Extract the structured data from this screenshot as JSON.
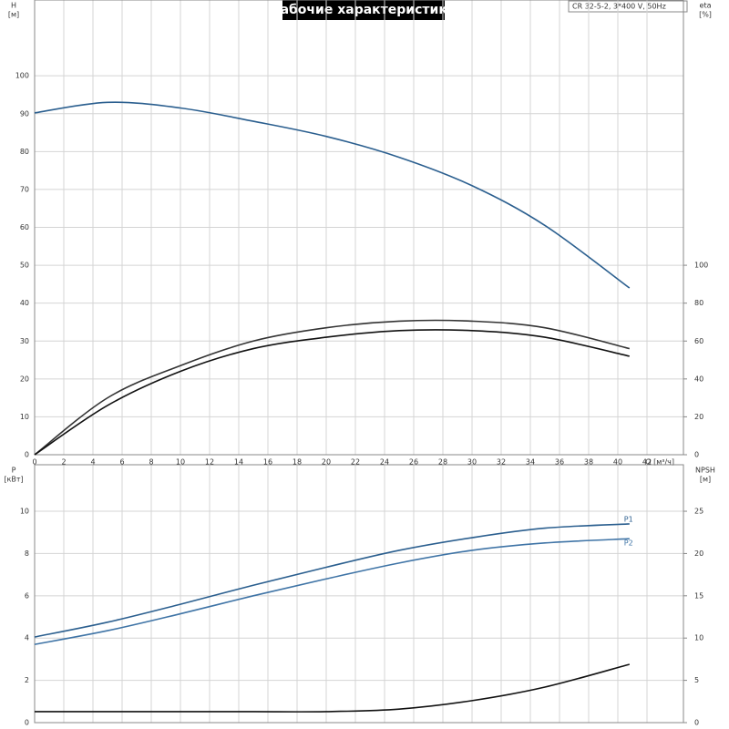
{
  "chart_data": [
    {
      "type": "line",
      "title": "Рабочие характеристики",
      "annotation": "CR 32-5-2, 3*400 V, 50Hz",
      "ylabel": "H",
      "yunit": "[м]",
      "y2label": "eta",
      "y2unit": "[%]",
      "xlabel": "Q [м³/ч]",
      "x": [
        0,
        5,
        10,
        15,
        20,
        25,
        30,
        35,
        40.8
      ],
      "xlim": [
        0,
        44.5
      ],
      "xticks": [
        0,
        2,
        4,
        6,
        8,
        10,
        12,
        14,
        16,
        18,
        20,
        22,
        24,
        26,
        28,
        30,
        32,
        34,
        36,
        38,
        40,
        42
      ],
      "ylim": [
        0,
        120
      ],
      "yticks": [
        0,
        10,
        20,
        30,
        40,
        50,
        60,
        70,
        80,
        90,
        100
      ],
      "y2lim": [
        0,
        240
      ],
      "y2ticks": [
        0,
        20,
        40,
        60,
        80,
        100
      ],
      "grid": true,
      "series": [
        {
          "color": "#2b5f8f",
          "values": [
            90.2,
            93,
            91.5,
            88,
            84,
            78.5,
            71,
            60.5,
            44
          ]
        },
        {
          "color": "#333333",
          "axis": "y2",
          "values": [
            0,
            30,
            47,
            60,
            67,
            70.5,
            70.5,
            67,
            56
          ]
        },
        {
          "color": "#111111",
          "axis": "y2",
          "values": [
            0,
            26,
            44,
            56,
            62,
            65.5,
            65.5,
            62,
            52
          ]
        }
      ]
    },
    {
      "type": "line",
      "ylabel": "P",
      "yunit": "[кВт]",
      "y2label": "NPSH",
      "y2unit": "[м]",
      "x": [
        0,
        5,
        10,
        15,
        20,
        25,
        30,
        35,
        40.8
      ],
      "xlim": [
        0,
        44.5
      ],
      "ylim": [
        0,
        12.2
      ],
      "yticks": [
        0,
        2,
        4,
        6,
        8,
        10
      ],
      "y2lim": [
        0,
        30.5
      ],
      "y2ticks": [
        0,
        5,
        10,
        15,
        20,
        25
      ],
      "grid": true,
      "series": [
        {
          "name": "P1",
          "color": "#2b5f8f",
          "values": [
            4.05,
            4.75,
            5.6,
            6.5,
            7.35,
            8.15,
            8.75,
            9.2,
            9.4
          ]
        },
        {
          "name": "P2",
          "color": "#3f74a6",
          "values": [
            3.7,
            4.35,
            5.15,
            6.0,
            6.8,
            7.55,
            8.15,
            8.5,
            8.7
          ]
        },
        {
          "color": "#111111",
          "axis": "y2",
          "values": [
            1.3,
            1.3,
            1.3,
            1.3,
            1.3,
            1.6,
            2.6,
            4.2,
            6.9
          ]
        }
      ]
    }
  ]
}
